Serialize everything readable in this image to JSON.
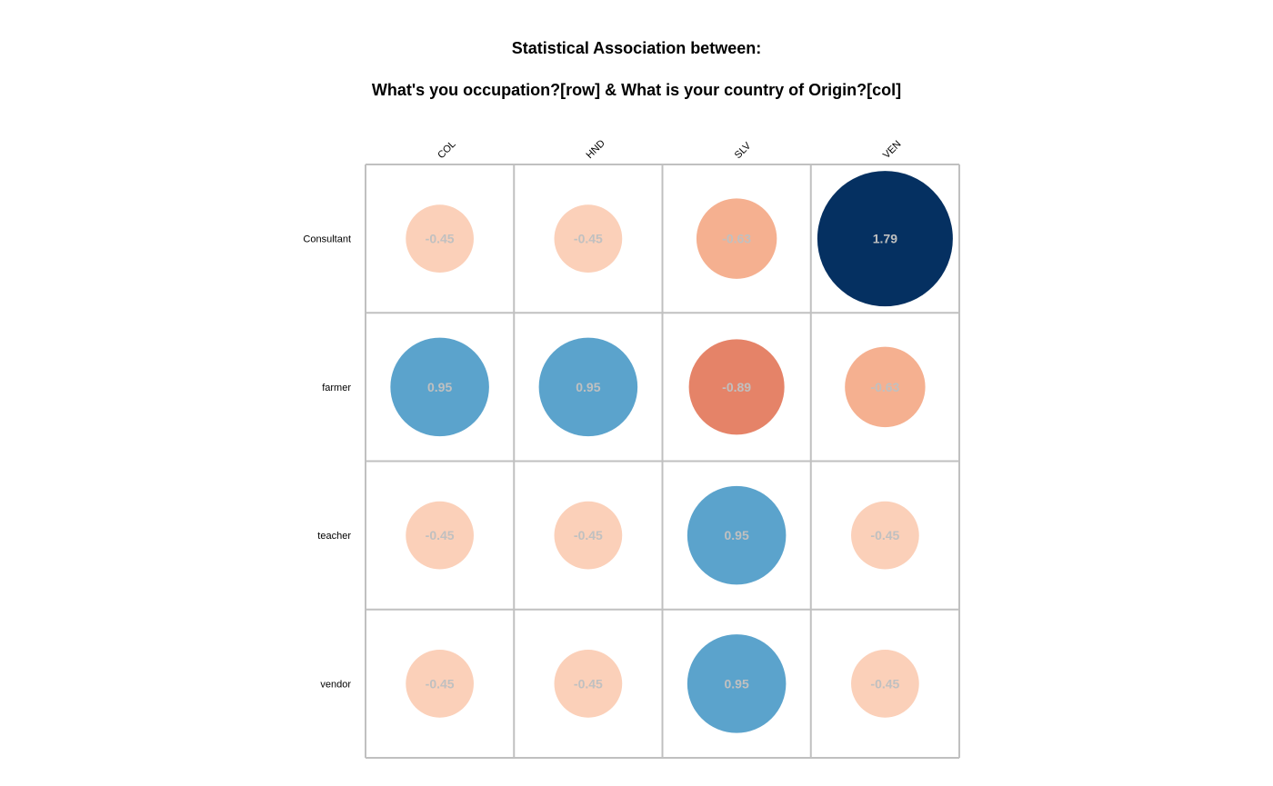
{
  "chart_data": {
    "type": "heatmap",
    "title_lines": [
      "Statistical Association between:",
      "What's you occupation?[row] & What is your country of Origin?[col]"
    ],
    "columns": [
      "COL",
      "HND",
      "SLV",
      "VEN"
    ],
    "rows": [
      "Consultant",
      "farmer",
      "teacher",
      "vendor"
    ],
    "values": [
      [
        -0.45,
        -0.45,
        -0.63,
        1.79
      ],
      [
        0.95,
        0.95,
        -0.89,
        -0.63
      ],
      [
        -0.45,
        -0.45,
        0.95,
        -0.45
      ],
      [
        -0.45,
        -0.45,
        0.95,
        -0.45
      ]
    ],
    "value_range": [
      -1.79,
      1.79
    ],
    "marker": "circle",
    "grid": true,
    "colors": {
      "strong_positive": "#053061",
      "positive": "#5ba3cc",
      "weak_negative": "#fbd0b9",
      "negative": "#f5b090",
      "strong_negative": "#e58368",
      "value_label": "#c0c0c0",
      "grid_line": "#c0c0c0"
    }
  }
}
